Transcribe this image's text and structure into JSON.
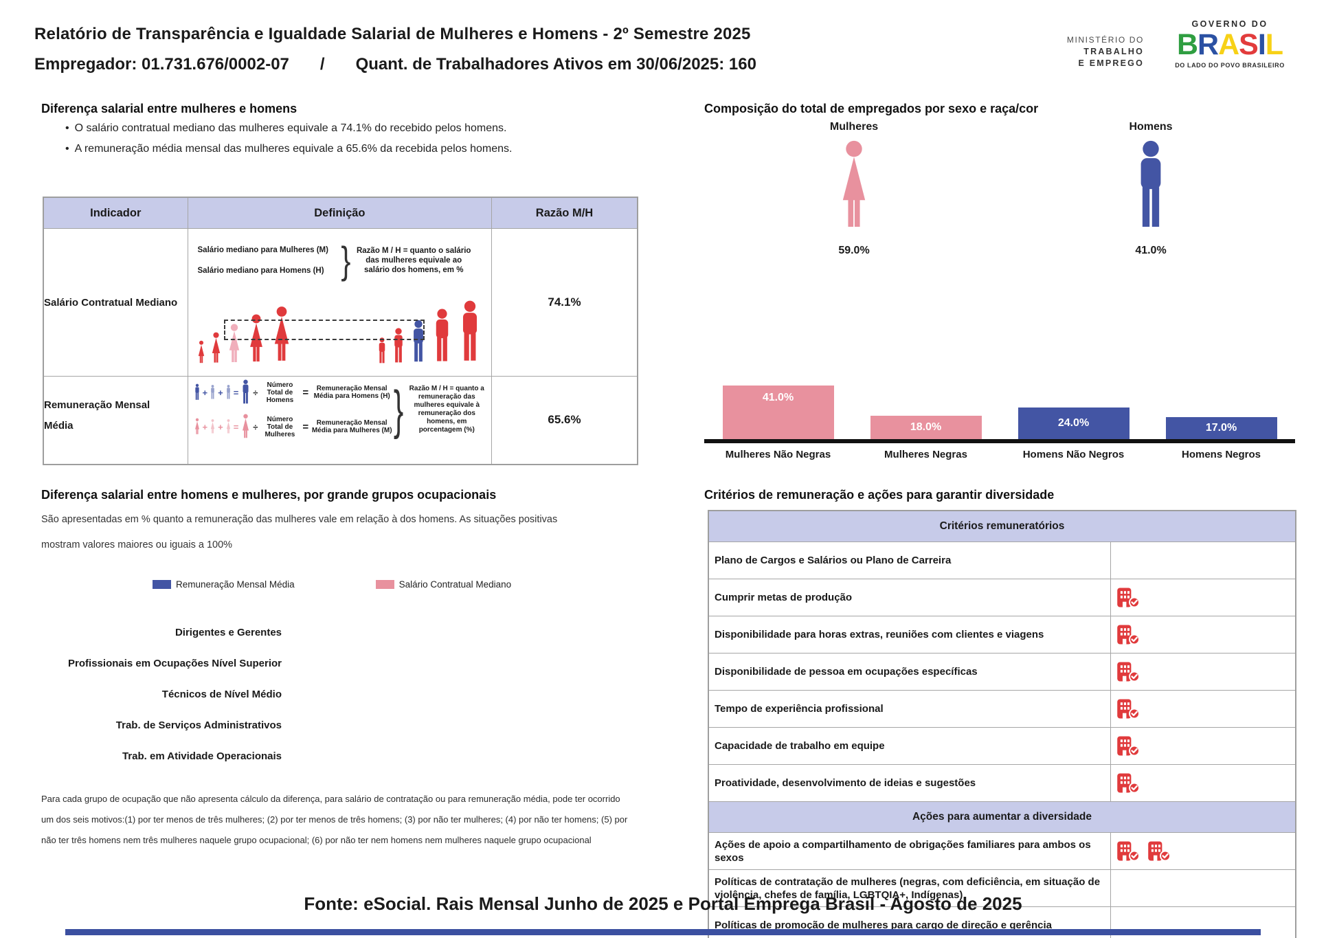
{
  "colors": {
    "pink": "#E8919E",
    "light_pink": "#F0AEBB",
    "blue": "#4355A4",
    "red": "#E03A3C",
    "lavender": "#C7CBE9",
    "strip_blue": "#3B4FA0"
  },
  "header": {
    "title": "Relatório de Transparência e Igualdade Salarial de Mulheres e Homens - 2º Semestre 2025",
    "employer": "Empregador: 01.731.676/0002-07",
    "separator": "/",
    "active_workers": "Quant. de Trabalhadores Ativos em 30/06/2025: 160",
    "ministry_line1": "MINISTÉRIO DO",
    "ministry_line2": "TRABALHO",
    "ministry_line3": "E EMPREGO",
    "gov_top": "GOVERNO DO",
    "gov_letters": [
      "B",
      "R",
      "A",
      "S",
      "I",
      "L"
    ],
    "gov_letter_colors": [
      "#2F9E41",
      "#2B51A3",
      "#F7D117",
      "#E23C3C",
      "#2B51A3",
      "#F7D117"
    ],
    "gov_bottom": "DO LADO DO POVO BRASILEIRO"
  },
  "salary_gap": {
    "title": "Diferença salarial entre mulheres e homens",
    "bullet_marker": "•",
    "bullet1": "O salário contratual mediano das mulheres equivale a 74.1% do recebido pelos homens.",
    "bullet2": "A remuneração média mensal das mulheres equivale a 65.6% da recebida pelos homens.",
    "col_indicator": "Indicador",
    "col_definition": "Definição",
    "col_ratio": "Razão M/H",
    "row1": {
      "indicator": "Salário Contratual Mediano",
      "def_label1": "Salário mediano para Mulheres (M)",
      "def_label2": "Salário mediano para Homens (H)",
      "brace": "}",
      "def_note": "Razão M / H = quanto o salário das mulheres equivale ao salário dos homens, em %",
      "ratio": "74.1%"
    },
    "row2": {
      "indicator_line1": "Remuneração Mensal",
      "indicator_line2": "Média",
      "plus": "+",
      "equals": "=",
      "divide": "÷",
      "men_divisor": "Número Total de Homens",
      "men_result": "Remuneração Mensal Média para Homens (H)",
      "women_divisor": "Número Total de Mulheres",
      "women_result": "Remuneração Mensal Média para Mulheres (M)",
      "brace": "}",
      "def_note": "Razão M / H = quanto a remuneração das mulheres equivale à remuneração dos homens, em porcentagem (%)",
      "ratio": "65.6%"
    }
  },
  "composition": {
    "title": "Composição do total de empregados por sexo e raça/cor",
    "women_label": "Mulheres",
    "women_value": "59.0%",
    "men_label": "Homens",
    "men_value": "41.0%",
    "bars": [
      {
        "label": "Mulheres Não Negras",
        "value_label": "41.0%",
        "pct": 41,
        "color": "#E8919E"
      },
      {
        "label": "Mulheres Negras",
        "value_label": "18.0%",
        "pct": 18,
        "color": "#E8919E"
      },
      {
        "label": "Homens Não Negros",
        "value_label": "24.0%",
        "pct": 24,
        "color": "#4355A4"
      },
      {
        "label": "Homens Negros",
        "value_label": "17.0%",
        "pct": 17,
        "color": "#4355A4"
      }
    ]
  },
  "occupational": {
    "title": "Diferença salarial entre homens e mulheres, por grande grupos ocupacionais",
    "desc_line1": "São apresentadas em % quanto a remuneração das mulheres vale em relação à dos homens. As situações positivas",
    "desc_line2": "mostram valores maiores ou iguais a 100%",
    "legend1": "Remuneração Mensal Média",
    "legend2": "Salário Contratual Mediano",
    "categories": [
      "Dirigentes e Gerentes",
      "Profissionais em Ocupações Nível Superior",
      "Técnicos de Nível Médio",
      "Trab. de Serviços Administrativos",
      "Trab. em Atividade Operacionais"
    ],
    "footnote": "Para cada grupo de ocupação que não apresenta cálculo da diferença, para salário de contratação ou para remuneração média, pode ter ocorrido um dos seis motivos:(1) por ter menos de três mulheres; (2) por ter menos de três homens; (3) por não ter mulheres; (4) por não ter homens; (5) por não ter três homens nem três mulheres naquele grupo ocupacional; (6) por não ter nem homens nem mulheres naquele grupo ocupacional"
  },
  "criteria": {
    "title": "Critérios de remuneração e ações para garantir diversidade",
    "section1": "Critérios remuneratórios",
    "rows1": [
      {
        "label": "Plano de Cargos e Salários ou Plano de Carreira",
        "icons": 0
      },
      {
        "label": "Cumprir metas de produção",
        "icons": 1
      },
      {
        "label": "Disponibilidade para horas extras, reuniões com clientes e viagens",
        "icons": 1
      },
      {
        "label": "Disponibilidade de pessoa em ocupações específicas",
        "icons": 1
      },
      {
        "label": "Tempo de experiência profissional",
        "icons": 1
      },
      {
        "label": "Capacidade de trabalho em equipe",
        "icons": 1
      },
      {
        "label": "Proatividade, desenvolvimento de ideias e sugestões",
        "icons": 1
      }
    ],
    "section2": "Ações para aumentar a diversidade",
    "rows2": [
      {
        "label": "Ações de apoio a compartilhamento de obrigações familiares para ambos os sexos",
        "icons": 2
      },
      {
        "label": "Políticas de contratação de mulheres (negras, com deficiência, em situação de violência, chefes de família, LGBTQIA+, Indígenas)",
        "icons": 0
      },
      {
        "label": "Políticas de promoção de mulheres para cargo de direção e gerência",
        "icons": 0
      }
    ]
  },
  "footer": {
    "source": "Fonte: eSocial. Rais Mensal Junho de 2025 e Portal Emprega Brasil - Agosto de 2025"
  },
  "chart_data": [
    {
      "type": "pictogram",
      "title": "Composição do total de empregados por sexo e raça/cor",
      "categories": [
        "Mulheres",
        "Homens"
      ],
      "values": [
        59.0,
        41.0
      ],
      "unit": "%"
    },
    {
      "type": "bar",
      "categories": [
        "Mulheres Não Negras",
        "Mulheres Negras",
        "Homens Não Negros",
        "Homens Negros"
      ],
      "values": [
        41.0,
        18.0,
        24.0,
        17.0
      ],
      "unit": "%",
      "colors": [
        "#E8919E",
        "#E8919E",
        "#4355A4",
        "#4355A4"
      ],
      "ylim": [
        0,
        45
      ],
      "grid": false,
      "legend_position": "none"
    },
    {
      "type": "bar",
      "title": "Diferença salarial entre homens e mulheres, por grande grupos ocupacionais",
      "categories": [
        "Dirigentes e Gerentes",
        "Profissionais em Ocupações Nível Superior",
        "Técnicos de Nível Médio",
        "Trab. de Serviços Administrativos",
        "Trab. em Atividade Operacionais"
      ],
      "series": [
        {
          "name": "Remuneração Mensal Média",
          "values": [
            null,
            null,
            null,
            null,
            null
          ]
        },
        {
          "name": "Salário Contratual Mediano",
          "values": [
            null,
            null,
            null,
            null,
            null
          ]
        }
      ],
      "note": "nenhuma barra exibida (sem valores calculáveis)",
      "legend_position": "top"
    }
  ]
}
